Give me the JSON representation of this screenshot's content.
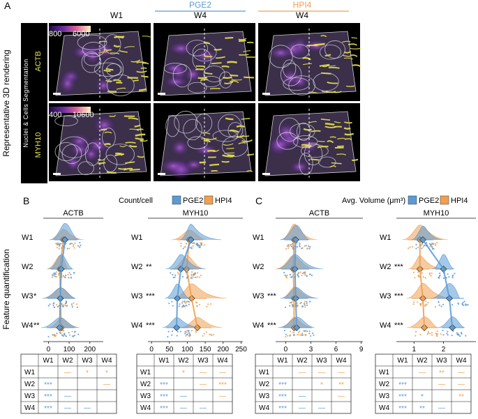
{
  "panelA": {
    "letter": "A",
    "columns": [
      {
        "label": "W1",
        "group": "",
        "color": "#111111"
      },
      {
        "label": "W4",
        "group": "PGE2",
        "color": "#5b9bd5"
      },
      {
        "label": "W4",
        "group": "HPI4",
        "color": "#f0a050"
      }
    ],
    "side_label": "Representative 3D rendering",
    "strip_label": "Nuclei & Cells Segmentation",
    "rows": [
      {
        "marker": "ACTB",
        "colorbar_min": "800",
        "colorbar_max": "6000"
      },
      {
        "marker": "MYH10",
        "colorbar_min": "400",
        "colorbar_max": "10600"
      }
    ]
  },
  "panelB": {
    "letter": "B",
    "metric": "Count/cell",
    "plots": [
      {
        "marker": "ACTB",
        "ticks": [
          "0",
          "100",
          "200"
        ],
        "tick_values": [
          0,
          100,
          200
        ],
        "range": [
          -25,
          265
        ],
        "weeks": [
          "W1",
          "W2",
          "W3",
          "W4"
        ],
        "sig": [
          "",
          "",
          "*",
          "**"
        ],
        "medians_pge2": [
          80,
          62,
          57,
          54
        ],
        "medians_hpi4": [
          72,
          55,
          58,
          62
        ]
      },
      {
        "marker": "MYH10",
        "ticks": [
          "0",
          "50",
          "100",
          "150",
          "200",
          "250"
        ],
        "tick_values": [
          0,
          50,
          100,
          150,
          200,
          250
        ],
        "range": [
          -10,
          255
        ],
        "weeks": [
          "W1",
          "W2",
          "W3",
          "W4"
        ],
        "sig": [
          "",
          "**",
          "***",
          "***"
        ],
        "medians_pge2": [
          110,
          82,
          72,
          70
        ],
        "medians_hpi4": [
          105,
          98,
          112,
          128
        ]
      }
    ],
    "tables": [
      {
        "header": [
          "",
          "W1",
          "W2",
          "W3",
          "W4"
        ],
        "rows": [
          {
            "label": "W1",
            "cells": [
              {
                "t": "",
                "c": ""
              },
              {
                "t": "—",
                "c": "o"
              },
              {
                "t": "*",
                "c": "o"
              },
              {
                "t": "*",
                "c": "o"
              }
            ]
          },
          {
            "label": "W2",
            "cells": [
              {
                "t": "***",
                "c": "b"
              },
              {
                "t": "",
                "c": ""
              },
              {
                "t": "",
                "c": ""
              },
              {
                "t": "—",
                "c": "o"
              }
            ]
          },
          {
            "label": "W3",
            "cells": [
              {
                "t": "***",
                "c": "b"
              },
              {
                "t": "—",
                "c": "b"
              },
              {
                "t": "",
                "c": ""
              },
              {
                "t": "",
                "c": ""
              }
            ]
          },
          {
            "label": "W4",
            "cells": [
              {
                "t": "***",
                "c": "b"
              },
              {
                "t": "—",
                "c": "b"
              },
              {
                "t": "—",
                "c": "b"
              },
              {
                "t": "",
                "c": ""
              }
            ]
          }
        ]
      },
      {
        "header": [
          "",
          "W1",
          "W2",
          "W3",
          "W4"
        ],
        "rows": [
          {
            "label": "W1",
            "cells": [
              {
                "t": "",
                "c": ""
              },
              {
                "t": "*",
                "c": "o"
              },
              {
                "t": "—",
                "c": "o"
              },
              {
                "t": "—",
                "c": "o"
              }
            ]
          },
          {
            "label": "W2",
            "cells": [
              {
                "t": "***",
                "c": "b"
              },
              {
                "t": "",
                "c": ""
              },
              {
                "t": "—",
                "c": "o"
              },
              {
                "t": "***",
                "c": "o"
              }
            ]
          },
          {
            "label": "W3",
            "cells": [
              {
                "t": "***",
                "c": "b"
              },
              {
                "t": "—",
                "c": "b"
              },
              {
                "t": "",
                "c": ""
              },
              {
                "t": "—",
                "c": "o"
              }
            ]
          },
          {
            "label": "W4",
            "cells": [
              {
                "t": "***",
                "c": "b"
              },
              {
                "t": "—",
                "c": "b"
              },
              {
                "t": "—",
                "c": "b"
              },
              {
                "t": "",
                "c": ""
              }
            ]
          }
        ]
      }
    ]
  },
  "panelC": {
    "letter": "C",
    "metric": "Avg. Volume (μm³)",
    "plots": [
      {
        "marker": "ACTB",
        "ticks": [
          "0",
          "3",
          "6",
          "9"
        ],
        "tick_values": [
          0,
          3,
          6,
          9
        ],
        "range": [
          -1.2,
          9.2
        ],
        "weeks": [
          "W1",
          "W2",
          "W3",
          "W4"
        ],
        "sig": [
          "",
          "",
          "***",
          "***"
        ],
        "medians_pge2": [
          1.2,
          1.1,
          1.2,
          1.3
        ],
        "medians_hpi4": [
          1.0,
          0.9,
          1.0,
          1.0
        ]
      },
      {
        "marker": "MYH10",
        "ticks": [
          "1",
          "2"
        ],
        "tick_values": [
          1,
          2
        ],
        "range": [
          0.4,
          3.1
        ],
        "weeks": [
          "W1",
          "W2",
          "W3",
          "W4"
        ],
        "sig": [
          "",
          "***",
          "***",
          "***"
        ],
        "medians_pge2": [
          1.3,
          2.0,
          2.2,
          2.3
        ],
        "medians_hpi4": [
          1.2,
          1.2,
          1.3,
          1.35
        ]
      }
    ],
    "tables": [
      {
        "header": [
          "",
          "W1",
          "W2",
          "W3",
          "W4"
        ],
        "rows": [
          {
            "label": "W1",
            "cells": [
              {
                "t": "",
                "c": ""
              },
              {
                "t": "—",
                "c": "o"
              },
              {
                "t": "—",
                "c": "o"
              },
              {
                "t": "—",
                "c": "o"
              }
            ]
          },
          {
            "label": "W2",
            "cells": [
              {
                "t": "***",
                "c": "b"
              },
              {
                "t": "",
                "c": ""
              },
              {
                "t": "*",
                "c": "o"
              },
              {
                "t": "**",
                "c": "o"
              }
            ]
          },
          {
            "label": "W3",
            "cells": [
              {
                "t": "***",
                "c": "b"
              },
              {
                "t": "—",
                "c": "b"
              },
              {
                "t": "",
                "c": ""
              },
              {
                "t": "—",
                "c": "o"
              }
            ]
          },
          {
            "label": "W4",
            "cells": [
              {
                "t": "***",
                "c": "b"
              },
              {
                "t": "—",
                "c": "b"
              },
              {
                "t": "—",
                "c": "b"
              },
              {
                "t": "",
                "c": ""
              }
            ]
          }
        ]
      },
      {
        "header": [
          "",
          "W1",
          "W2",
          "W3",
          "W4"
        ],
        "rows": [
          {
            "label": "W1",
            "cells": [
              {
                "t": "",
                "c": ""
              },
              {
                "t": "—",
                "c": "o"
              },
              {
                "t": "**",
                "c": "o"
              },
              {
                "t": "—",
                "c": "o"
              }
            ]
          },
          {
            "label": "W2",
            "cells": [
              {
                "t": "***",
                "c": "b"
              },
              {
                "t": "",
                "c": ""
              },
              {
                "t": "—",
                "c": "o"
              },
              {
                "t": "—",
                "c": "o"
              }
            ]
          },
          {
            "label": "W3",
            "cells": [
              {
                "t": "***",
                "c": "b"
              },
              {
                "t": "*",
                "c": "b"
              },
              {
                "t": "",
                "c": ""
              },
              {
                "t": "**",
                "c": "o"
              }
            ]
          },
          {
            "label": "W4",
            "cells": [
              {
                "t": "***",
                "c": "b"
              },
              {
                "t": "**",
                "c": "b"
              },
              {
                "t": "—",
                "c": "b"
              },
              {
                "t": "",
                "c": ""
              }
            ]
          }
        ]
      }
    ]
  },
  "legend": {
    "pge2": "PGE2",
    "hpi4": "HPI4"
  },
  "side_label_quant": "Feature quantification",
  "colors": {
    "pge2": "#5b9bd5",
    "hpi4": "#f0a050",
    "yellow": "#e6e24a"
  }
}
